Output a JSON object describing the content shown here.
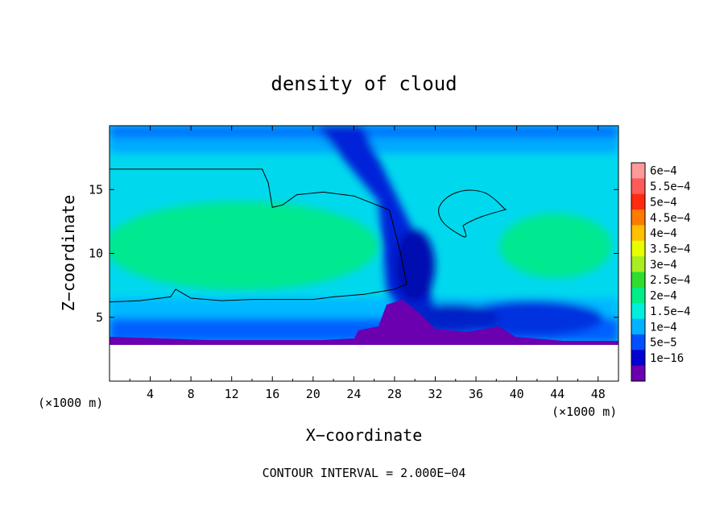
{
  "chart_data": {
    "type": "heatmap",
    "title": "density of cloud",
    "xlabel": "X−coordinate",
    "ylabel": "Z−coordinate",
    "x_unit": "(×1000 m)",
    "y_unit": "(×1000 m)",
    "footer": "CONTOUR INTERVAL = 2.000E−04",
    "xlim": [
      0,
      50
    ],
    "ylim": [
      0,
      20
    ],
    "x_ticks": [
      4,
      8,
      12,
      16,
      20,
      24,
      28,
      32,
      36,
      40,
      44,
      48
    ],
    "y_ticks": [
      5,
      10,
      15
    ],
    "colorbar": {
      "labels": [
        "6e−4",
        "5.5e−4",
        "5e−4",
        "4.5e−4",
        "4e−4",
        "3.5e−4",
        "3e−4",
        "2.5e−4",
        "2e−4",
        "1.5e−4",
        "1e−4",
        "5e−5",
        "1e−16"
      ],
      "colors": [
        "#ff9a9a",
        "#ff5a5a",
        "#ff2a10",
        "#ff7a00",
        "#ffc000",
        "#e8ff00",
        "#a8ee20",
        "#30dc30",
        "#00ee88",
        "#00eedd",
        "#00b2ff",
        "#0050ff",
        "#0000d0",
        "#6a00b0"
      ]
    },
    "contour_level": 0.0002,
    "contour_line": [
      [
        0.0,
        16.6
      ],
      [
        15.0,
        16.6
      ],
      [
        15.6,
        15.5
      ],
      [
        16.0,
        13.6
      ],
      [
        17.0,
        13.8
      ],
      [
        18.4,
        14.6
      ],
      [
        21.0,
        14.8
      ],
      [
        24.0,
        14.5
      ],
      [
        27.5,
        13.4
      ],
      [
        28.6,
        10.0
      ],
      [
        29.2,
        7.6
      ],
      [
        28.0,
        7.2
      ],
      [
        25.0,
        6.8
      ],
      [
        22.0,
        6.6
      ],
      [
        20.0,
        6.4
      ],
      [
        17.0,
        6.4
      ],
      [
        14.0,
        6.4
      ],
      [
        11.0,
        6.3
      ],
      [
        8.0,
        6.5
      ],
      [
        6.5,
        7.2
      ],
      [
        6.0,
        6.6
      ],
      [
        3.0,
        6.3
      ],
      [
        0.0,
        6.2
      ]
    ]
  }
}
